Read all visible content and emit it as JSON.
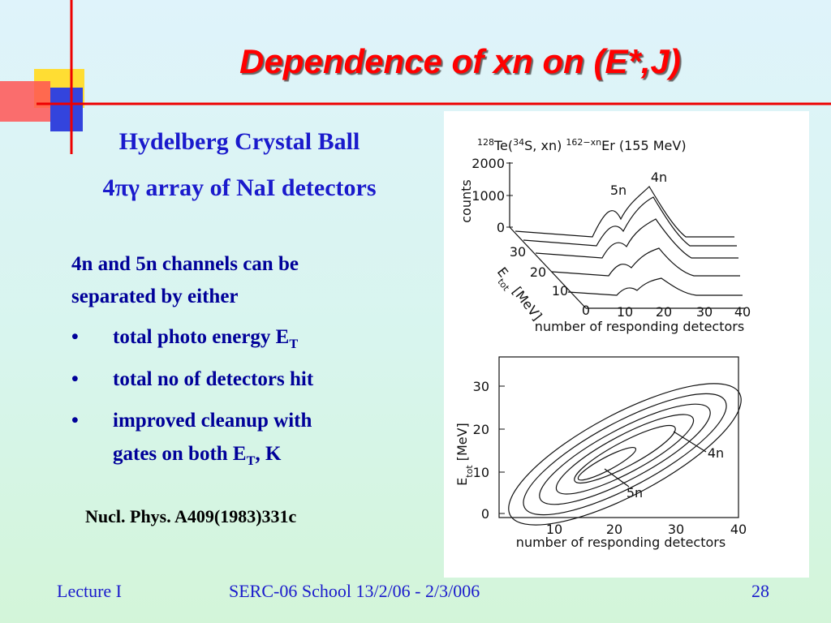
{
  "title": "Dependence of  xn on (E*,J)",
  "subtitle": [
    "Hydelberg Crystal Ball",
    "4πγ array of NaI detectors"
  ],
  "body": {
    "intro": [
      "4n and 5n channels can be",
      "separated by either"
    ],
    "bullet_symbol": "•",
    "bullets": [
      [
        {
          "text": "total photo energy E"
        },
        {
          "text": "T",
          "sub": true
        }
      ],
      [
        {
          "text": "total no of detectors hit"
        }
      ],
      [
        {
          "text": "improved cleanup with"
        }
      ],
      [
        {
          "text": "gates on both E"
        },
        {
          "text": "T",
          "sub": true
        },
        {
          "text": ", K"
        }
      ]
    ]
  },
  "reference": "Nucl. Phys. A409(1983)331c",
  "figure": {
    "top": {
      "reaction": [
        {
          "text": "128",
          "sup": true
        },
        {
          "text": "Te("
        },
        {
          "text": "34",
          "sup": true
        },
        {
          "text": "S, xn)  "
        },
        {
          "text": "162−xn",
          "sup": true
        },
        {
          "text": "Er (155 MeV)"
        }
      ],
      "ylabel": "counts",
      "yticks": [
        "2000",
        "1000",
        "0"
      ],
      "depth_label": [
        {
          "text": "E"
        },
        {
          "text": "tot",
          "sub": true
        },
        {
          "text": " [MeV]"
        }
      ],
      "depth_ticks": [
        "30",
        "20",
        "10",
        "0"
      ],
      "xticks": [
        "10",
        "20",
        "30",
        "40"
      ],
      "xlabel": "number of responding detectors",
      "peak_labels": [
        "5n",
        "4n"
      ]
    },
    "bottom": {
      "ylabel": [
        {
          "text": "E"
        },
        {
          "text": "tot",
          "sub": true
        },
        {
          "text": " [MeV]"
        }
      ],
      "yticks": [
        "30",
        "20",
        "10",
        "0"
      ],
      "xticks": [
        "10",
        "20",
        "30",
        "40"
      ],
      "xlabel": "number of responding detectors",
      "peak_labels": [
        "4n",
        "5n"
      ]
    }
  },
  "footer": {
    "left": "Lecture I",
    "center": "SERC-06 School  13/2/06 - 2/3/006",
    "right": "28"
  }
}
